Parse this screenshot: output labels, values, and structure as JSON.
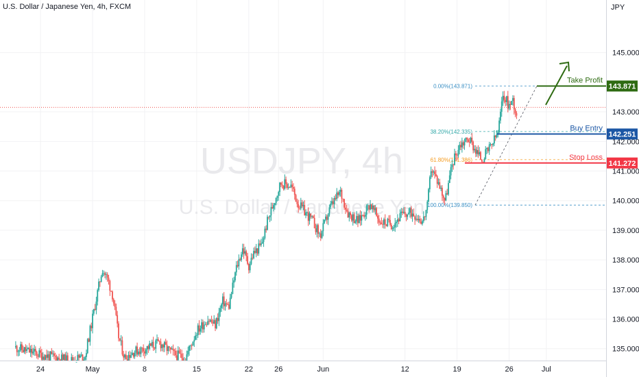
{
  "header": {
    "instrument": "U.S. Dollar / Japanese Yen, 4h, FXCM",
    "currency": "JPY"
  },
  "watermark": {
    "symbol": "USDJPY, 4h",
    "name": "U.S. Dollar / Japanese Yen"
  },
  "chart_data": {
    "type": "candlestick",
    "ylim": [
      134.6,
      145.35
    ],
    "y_ticks": [
      {
        "value": 145.0,
        "label": "145.000"
      },
      {
        "value": 143.0,
        "label": "143.000"
      },
      {
        "value": 142.0,
        "label": "142.000"
      },
      {
        "value": 141.0,
        "label": "141.000"
      },
      {
        "value": 140.0,
        "label": "140.000"
      },
      {
        "value": 139.0,
        "label": "139.000"
      },
      {
        "value": 138.0,
        "label": "138.000"
      },
      {
        "value": 137.0,
        "label": "137.000"
      },
      {
        "value": 136.0,
        "label": "136.000"
      },
      {
        "value": 135.0,
        "label": "135.000"
      }
    ],
    "x_ticks": [
      {
        "day": -7,
        "label": "24"
      },
      {
        "day": 0,
        "label": "May"
      },
      {
        "day": 7,
        "label": "8"
      },
      {
        "day": 14,
        "label": "15"
      },
      {
        "day": 21,
        "label": "22"
      },
      {
        "day": 25,
        "label": "26"
      },
      {
        "day": 31,
        "label": "Jun"
      },
      {
        "day": 42,
        "label": "12"
      },
      {
        "day": 49,
        "label": "19"
      },
      {
        "day": 56,
        "label": "26"
      },
      {
        "day": 61,
        "label": "Jul"
      }
    ],
    "anchors": [
      {
        "day": -10.5,
        "price": 135.05
      },
      {
        "day": -7,
        "price": 134.8
      },
      {
        "day": -3,
        "price": 134.6
      },
      {
        "day": -1,
        "price": 134.75
      },
      {
        "day": 0.2,
        "price": 136.3
      },
      {
        "day": 1.3,
        "price": 137.7
      },
      {
        "day": 2.1,
        "price": 137.3
      },
      {
        "day": 2.7,
        "price": 136.8
      },
      {
        "day": 3.5,
        "price": 135.4
      },
      {
        "day": 4.3,
        "price": 134.7
      },
      {
        "day": 5.5,
        "price": 134.9
      },
      {
        "day": 7,
        "price": 135.0
      },
      {
        "day": 9,
        "price": 135.2
      },
      {
        "day": 11,
        "price": 134.8
      },
      {
        "day": 12.5,
        "price": 134.7
      },
      {
        "day": 14,
        "price": 135.6
      },
      {
        "day": 15.5,
        "price": 136.0
      },
      {
        "day": 16.5,
        "price": 135.8
      },
      {
        "day": 17.5,
        "price": 136.6
      },
      {
        "day": 18.3,
        "price": 136.4
      },
      {
        "day": 19.3,
        "price": 137.7
      },
      {
        "day": 20.2,
        "price": 138.4
      },
      {
        "day": 21,
        "price": 137.8
      },
      {
        "day": 21.6,
        "price": 138.2
      },
      {
        "day": 22.7,
        "price": 138.5
      },
      {
        "day": 23.5,
        "price": 139.3
      },
      {
        "day": 24.3,
        "price": 139.9
      },
      {
        "day": 25.3,
        "price": 140.6
      },
      {
        "day": 26.7,
        "price": 140.5
      },
      {
        "day": 27.6,
        "price": 139.9
      },
      {
        "day": 29.6,
        "price": 139.3
      },
      {
        "day": 30.6,
        "price": 138.8
      },
      {
        "day": 32,
        "price": 139.8
      },
      {
        "day": 33.3,
        "price": 140.3
      },
      {
        "day": 34.3,
        "price": 139.6
      },
      {
        "day": 35.7,
        "price": 139.3
      },
      {
        "day": 37.3,
        "price": 139.9
      },
      {
        "day": 38.6,
        "price": 139.3
      },
      {
        "day": 40.3,
        "price": 139.2
      },
      {
        "day": 41.5,
        "price": 139.5
      },
      {
        "day": 43,
        "price": 139.6
      },
      {
        "day": 44.4,
        "price": 139.3
      },
      {
        "day": 45,
        "price": 139.8
      },
      {
        "day": 45.5,
        "price": 141.1
      },
      {
        "day": 46.5,
        "price": 140.6
      },
      {
        "day": 47.4,
        "price": 140.0
      },
      {
        "day": 48.4,
        "price": 141.3
      },
      {
        "day": 49.4,
        "price": 141.9
      },
      {
        "day": 50.6,
        "price": 142.1
      },
      {
        "day": 51.5,
        "price": 141.7
      },
      {
        "day": 52.3,
        "price": 141.4
      },
      {
        "day": 53.5,
        "price": 141.8
      },
      {
        "day": 54.5,
        "price": 142.3
      },
      {
        "day": 55.2,
        "price": 143.6
      },
      {
        "day": 56.0,
        "price": 143.2
      },
      {
        "day": 56.5,
        "price": 143.4
      },
      {
        "day": 57.0,
        "price": 142.9
      }
    ],
    "levels": [
      {
        "label": "Take Profit",
        "tag": "143.871",
        "price": 143.871,
        "color": "#2e6b12"
      },
      {
        "label": "Buy Entry",
        "tag": "142.251",
        "price": 142.251,
        "color": "#1c57a5"
      },
      {
        "label": "Stop Loss",
        "tag": "141.272",
        "price": 141.272,
        "color": "#f23645"
      }
    ],
    "fibonacci": [
      {
        "label": "0.00%(143.871)",
        "price": 143.871,
        "color": "#3a8fc4"
      },
      {
        "label": "38.20%(142.335)",
        "price": 142.335,
        "color": "#32a8a8"
      },
      {
        "label": "61.80%(141.386)",
        "price": 141.386,
        "color": "#f59c21"
      },
      {
        "label": "100.00%(139.850)",
        "price": 139.85,
        "color": "#3a8fc4"
      }
    ],
    "current_price_line": 143.15,
    "colors": {
      "up": "#26a69a",
      "down": "#ef5350",
      "grid": "#f2f2f4"
    }
  }
}
